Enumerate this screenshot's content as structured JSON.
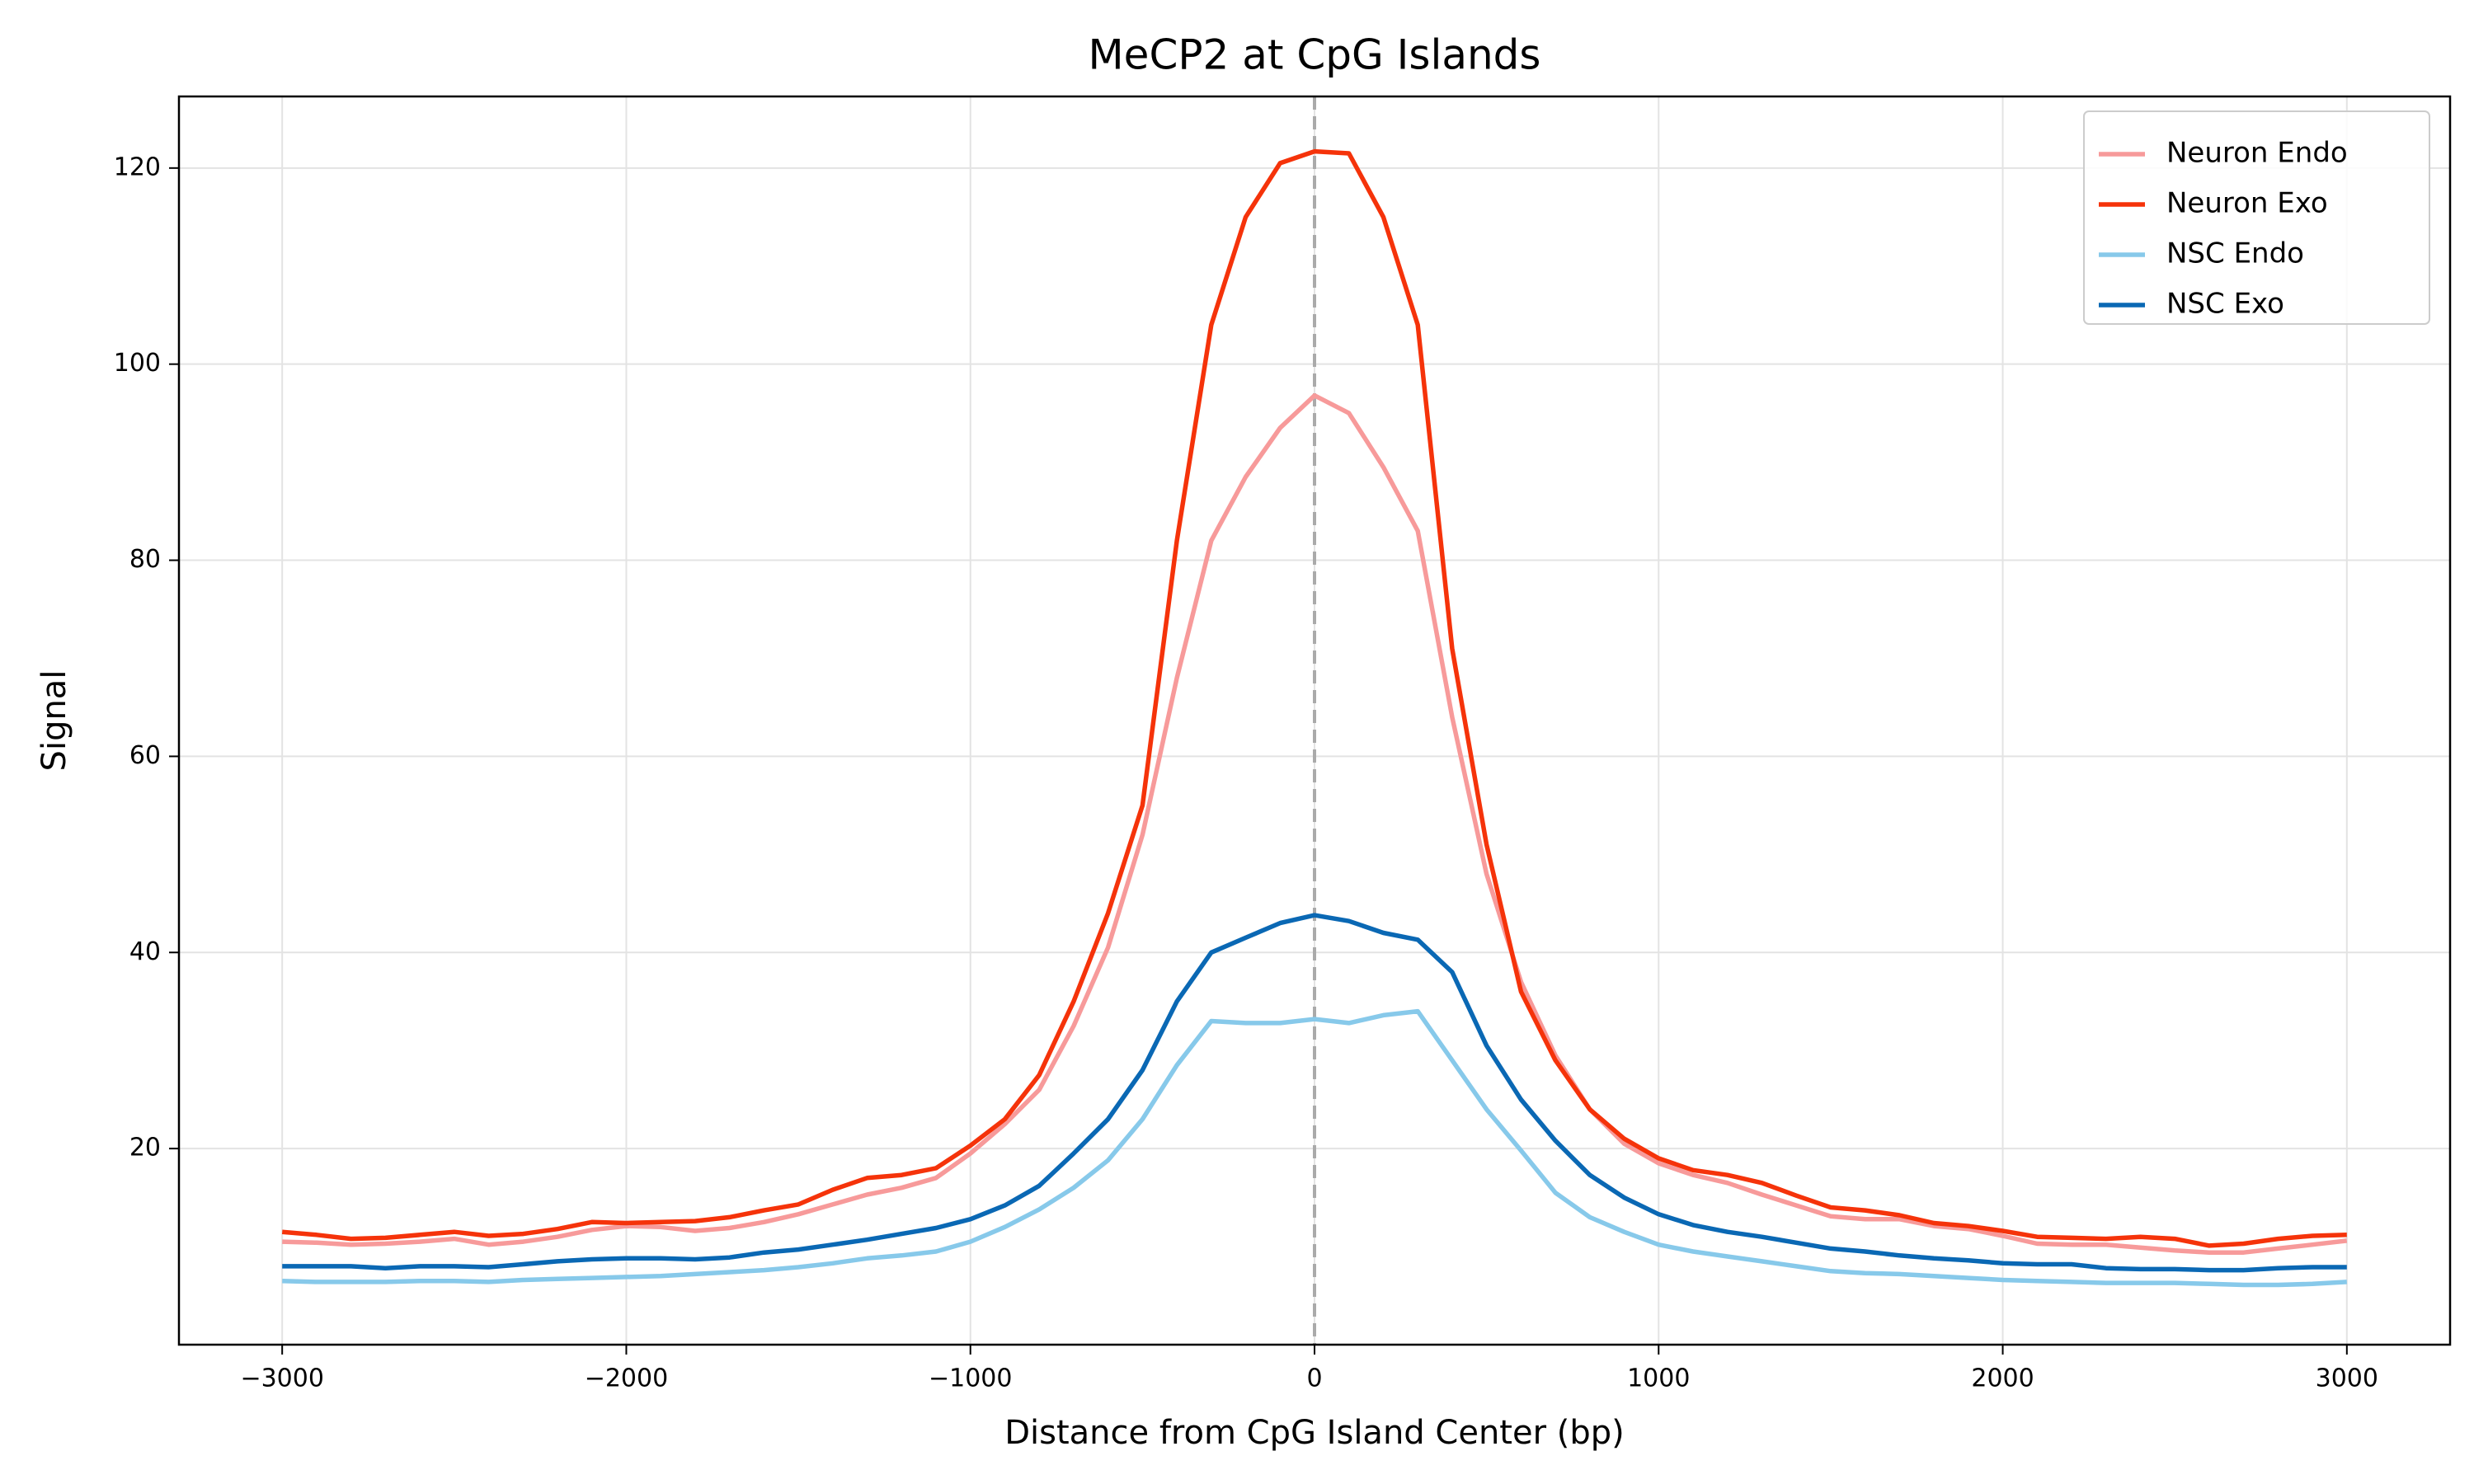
{
  "chart_data": {
    "type": "line",
    "title": "MeCP2 at CpG Islands",
    "xlabel": "Distance from CpG Island Center (bp)",
    "ylabel": "Signal",
    "x": [
      -3000,
      -2900,
      -2800,
      -2700,
      -2600,
      -2500,
      -2400,
      -2300,
      -2200,
      -2100,
      -2000,
      -1900,
      -1800,
      -1700,
      -1600,
      -1500,
      -1400,
      -1300,
      -1200,
      -1100,
      -1000,
      -900,
      -800,
      -700,
      -600,
      -500,
      -400,
      -300,
      -200,
      -100,
      0,
      100,
      200,
      300,
      400,
      500,
      600,
      700,
      800,
      900,
      1000,
      1100,
      1200,
      1300,
      1400,
      1500,
      1600,
      1700,
      1800,
      1900,
      2000,
      2100,
      2200,
      2300,
      2400,
      2500,
      2600,
      2700,
      2800,
      2900,
      3000
    ],
    "series": [
      {
        "name": "Neuron Endo",
        "color": "#f79a9a",
        "values": [
          10.5,
          10.4,
          10.2,
          10.3,
          10.5,
          10.8,
          10.2,
          10.5,
          11.0,
          11.7,
          12.1,
          12.0,
          11.6,
          11.9,
          12.5,
          13.3,
          14.3,
          15.3,
          16.0,
          17.0,
          19.5,
          22.5,
          26.0,
          32.5,
          40.5,
          52,
          68,
          82,
          88.5,
          93.5,
          96.8,
          95,
          89.5,
          83,
          64,
          48,
          37,
          29.5,
          24,
          20.5,
          18.5,
          17.3,
          16.5,
          15.3,
          14.2,
          13.1,
          12.8,
          12.8,
          12.1,
          11.8,
          11.1,
          10.3,
          10.2,
          10.2,
          9.9,
          9.6,
          9.4,
          9.4,
          9.8,
          10.2,
          10.6
        ]
      },
      {
        "name": "Neuron Exo",
        "color": "#f5330a",
        "values": [
          11.5,
          11.2,
          10.8,
          10.9,
          11.2,
          11.5,
          11.1,
          11.3,
          11.8,
          12.5,
          12.4,
          12.5,
          12.6,
          13.0,
          13.7,
          14.3,
          15.8,
          17.0,
          17.3,
          18.0,
          20.3,
          23.0,
          27.5,
          35.0,
          44.0,
          55,
          82,
          104,
          115,
          120.5,
          121.7,
          121.5,
          115,
          104,
          71,
          51,
          36,
          29,
          24,
          21,
          19,
          17.8,
          17.3,
          16.5,
          15.2,
          14.0,
          13.7,
          13.2,
          12.4,
          12.1,
          11.6,
          11.0,
          10.9,
          10.8,
          11.0,
          10.8,
          10.1,
          10.3,
          10.8,
          11.1,
          11.2
        ]
      },
      {
        "name": "NSC Endo",
        "color": "#87c9ea",
        "values": [
          6.5,
          6.4,
          6.4,
          6.4,
          6.5,
          6.5,
          6.4,
          6.6,
          6.7,
          6.8,
          6.9,
          7.0,
          7.2,
          7.4,
          7.6,
          7.9,
          8.3,
          8.8,
          9.1,
          9.5,
          10.5,
          12.0,
          13.8,
          16.0,
          18.8,
          23.0,
          28.5,
          33.0,
          32.8,
          32.8,
          33.2,
          32.8,
          33.6,
          34.0,
          29.0,
          24.0,
          19.8,
          15.5,
          13.0,
          11.5,
          10.2,
          9.5,
          9.0,
          8.5,
          8.0,
          7.5,
          7.3,
          7.2,
          7.0,
          6.8,
          6.6,
          6.5,
          6.4,
          6.3,
          6.3,
          6.3,
          6.2,
          6.1,
          6.1,
          6.2,
          6.4
        ]
      },
      {
        "name": "NSC Exo",
        "color": "#0a68b4",
        "values": [
          8.0,
          8.0,
          8.0,
          7.8,
          8.0,
          8.0,
          7.9,
          8.2,
          8.5,
          8.7,
          8.8,
          8.8,
          8.7,
          8.9,
          9.4,
          9.7,
          10.2,
          10.7,
          11.3,
          11.9,
          12.8,
          14.2,
          16.2,
          19.5,
          23.0,
          28.0,
          35.0,
          40.0,
          41.5,
          43.0,
          43.8,
          43.2,
          42.0,
          41.3,
          38.0,
          30.5,
          25.0,
          20.8,
          17.3,
          15.0,
          13.3,
          12.2,
          11.5,
          11.0,
          10.4,
          9.8,
          9.5,
          9.1,
          8.8,
          8.6,
          8.3,
          8.2,
          8.2,
          7.8,
          7.7,
          7.7,
          7.6,
          7.6,
          7.8,
          7.9,
          7.9
        ]
      }
    ],
    "xlim": [
      -3300,
      3300
    ],
    "ylim": [
      0,
      127.3
    ],
    "xticks": [
      {
        "value": -3000,
        "label": "−3000"
      },
      {
        "value": -2000,
        "label": "−2000"
      },
      {
        "value": -1000,
        "label": "−1000"
      },
      0,
      1000,
      2000,
      3000
    ],
    "yticks": [
      20,
      40,
      60,
      80,
      100,
      120
    ],
    "vline": 0,
    "grid": true,
    "legend": "upper right"
  }
}
